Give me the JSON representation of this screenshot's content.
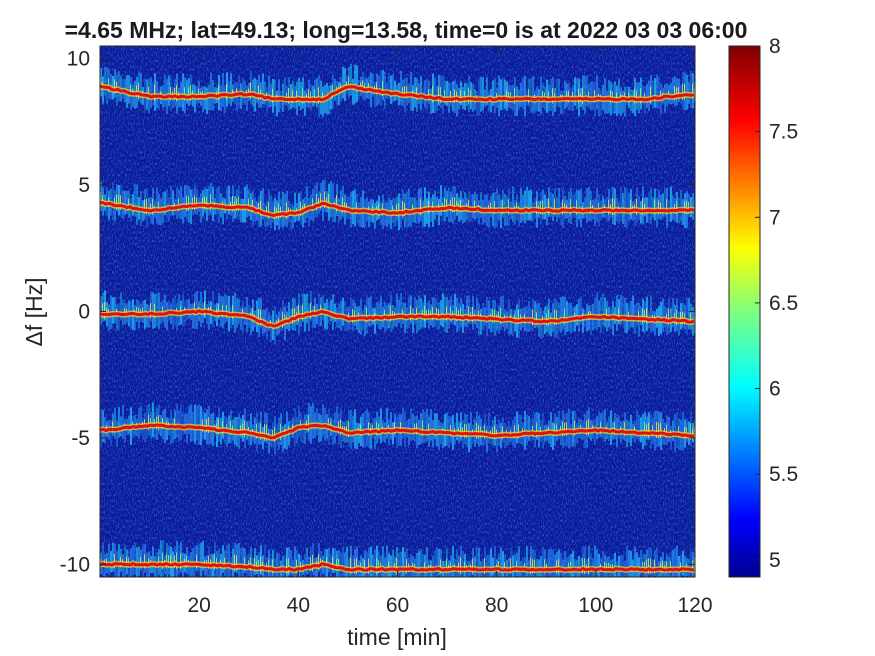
{
  "chart_data": {
    "type": "heatmap",
    "title": "=4.65 MHz;  lat=49.13; long=13.58, time=0 is at 2022 03 03 06:00",
    "xlabel": "time [min]",
    "ylabel": "Δf [Hz]",
    "xlim": [
      0,
      120
    ],
    "ylim": [
      -10.5,
      10.5
    ],
    "x_ticks": [
      20,
      40,
      60,
      80,
      100,
      120
    ],
    "y_ticks": [
      10,
      5,
      0,
      -5,
      -10
    ],
    "y_tick_labels": [
      "10",
      "5",
      "0",
      "-5",
      "-10"
    ],
    "x_tick_labels": [
      "20",
      "40",
      "60",
      "80",
      "100",
      "120"
    ],
    "colorbar": {
      "colormap": "jet",
      "lim": [
        4.9,
        8.0
      ],
      "ticks": [
        8,
        7.5,
        7,
        6.5,
        6,
        5.5,
        5
      ],
      "tick_labels": [
        "8",
        "7.5",
        "7",
        "6.5",
        "6",
        "5.5",
        "5"
      ],
      "background_color": "#0a1aa0"
    },
    "series": [
      {
        "nominal_offset": 9,
        "x": [
          0,
          10,
          20,
          30,
          35,
          40,
          45,
          50,
          60,
          70,
          80,
          90,
          100,
          110,
          120
        ],
        "y": [
          8.9,
          8.5,
          8.5,
          8.6,
          8.4,
          8.4,
          8.4,
          8.9,
          8.6,
          8.4,
          8.4,
          8.4,
          8.4,
          8.4,
          8.6
        ]
      },
      {
        "nominal_offset": 4.5,
        "x": [
          0,
          10,
          20,
          30,
          35,
          40,
          45,
          50,
          60,
          70,
          80,
          90,
          100,
          110,
          120
        ],
        "y": [
          4.3,
          4.0,
          4.2,
          4.1,
          3.8,
          3.9,
          4.3,
          4.0,
          3.9,
          4.1,
          4.0,
          4.0,
          4.0,
          4.0,
          4.0
        ]
      },
      {
        "nominal_offset": 0,
        "x": [
          0,
          10,
          20,
          30,
          35,
          40,
          45,
          50,
          60,
          70,
          80,
          90,
          100,
          110,
          120
        ],
        "y": [
          -0.1,
          -0.1,
          0.0,
          -0.2,
          -0.6,
          -0.2,
          0.0,
          -0.3,
          -0.2,
          -0.2,
          -0.3,
          -0.4,
          -0.2,
          -0.3,
          -0.4
        ]
      },
      {
        "nominal_offset": -4.5,
        "x": [
          0,
          10,
          20,
          30,
          35,
          40,
          45,
          50,
          60,
          70,
          80,
          90,
          100,
          110,
          120
        ],
        "y": [
          -4.7,
          -4.5,
          -4.6,
          -4.8,
          -5.0,
          -4.6,
          -4.5,
          -4.8,
          -4.7,
          -4.8,
          -4.9,
          -4.8,
          -4.7,
          -4.8,
          -4.9
        ]
      },
      {
        "nominal_offset": -9.8,
        "x": [
          0,
          10,
          20,
          30,
          35,
          40,
          45,
          50,
          60,
          70,
          80,
          90,
          100,
          110,
          120
        ],
        "y": [
          -10.0,
          -10.0,
          -10.0,
          -10.1,
          -10.2,
          -10.2,
          -10.0,
          -10.2,
          -10.2,
          -10.2,
          -10.2,
          -10.2,
          -10.2,
          -10.2,
          -10.2
        ]
      }
    ]
  }
}
